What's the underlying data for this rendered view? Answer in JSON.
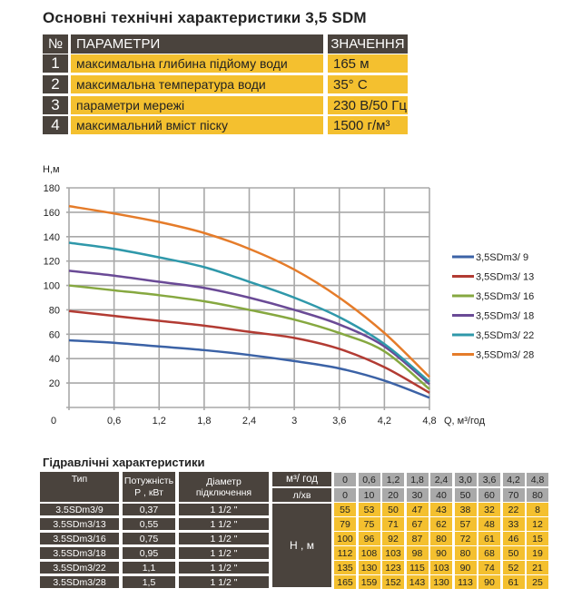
{
  "spec_table": {
    "title": "Основні технічні характеристики 3,5 SDM",
    "headers": {
      "num": "№",
      "param": "ПАРАМЕТРИ",
      "value": "ЗНАЧЕННЯ"
    },
    "rows": [
      {
        "num": "1",
        "param": "максимальна глибина підйому води",
        "value": "165 м"
      },
      {
        "num": "2",
        "param": "максимальна температура води",
        "value": "35° C"
      },
      {
        "num": "3",
        "param": "параметри мережі",
        "value": "230 В/50 Гц"
      },
      {
        "num": "4",
        "param": "максимальний вміст піску",
        "value": "1500 г/м³"
      }
    ]
  },
  "chart_data": {
    "type": "line",
    "ylabel": "H,м",
    "xlabel": "Q, м³/год",
    "x": [
      0,
      0.6,
      1.2,
      1.8,
      2.4,
      3.0,
      3.6,
      4.2,
      4.8
    ],
    "xticks": [
      "0",
      "0,6",
      "1,2",
      "1,8",
      "2,4",
      "3",
      "3,6",
      "4,2",
      "4,8"
    ],
    "yticks": [
      "20",
      "40",
      "60",
      "80",
      "100",
      "120",
      "140",
      "160",
      "180"
    ],
    "xlim": [
      0,
      4.8
    ],
    "ylim": [
      0,
      180
    ],
    "grid": true,
    "legend": "right",
    "series": [
      {
        "name": "3,5SDm3/ 9",
        "color": "#3b62a6",
        "values": [
          55,
          53,
          50,
          47,
          43,
          38,
          32,
          22,
          8
        ]
      },
      {
        "name": "3,5SDm3/ 13",
        "color": "#b23b33",
        "values": [
          79,
          75,
          71,
          67,
          62,
          57,
          48,
          33,
          12
        ]
      },
      {
        "name": "3,5SDm3/ 16",
        "color": "#86a840",
        "values": [
          100,
          96,
          92,
          87,
          80,
          72,
          61,
          46,
          15
        ]
      },
      {
        "name": "3,5SDm3/ 18",
        "color": "#6a4a96",
        "values": [
          112,
          108,
          103,
          98,
          90,
          80,
          68,
          50,
          19
        ]
      },
      {
        "name": "3,5SDm3/ 22",
        "color": "#2f98aa",
        "values": [
          135,
          130,
          123,
          115,
          103,
          90,
          74,
          52,
          21
        ]
      },
      {
        "name": "3,5SDm3/ 28",
        "color": "#e57c2a",
        "values": [
          165,
          159,
          152,
          143,
          130,
          113,
          90,
          61,
          25
        ]
      }
    ]
  },
  "hydraulic_table": {
    "title": "Гідравлічні характеристики",
    "headers": {
      "type": "Тип",
      "power": "Потужність Р , кВт",
      "diameter": "Діаметр підключення",
      "flow_m3": "м³/ год",
      "flow_l": "л/хв",
      "head": "Н , м"
    },
    "flow_m3": [
      "0",
      "0,6",
      "1,2",
      "1,8",
      "2,4",
      "3,0",
      "3,6",
      "4,2",
      "4,8"
    ],
    "flow_l": [
      "0",
      "10",
      "20",
      "30",
      "40",
      "50",
      "60",
      "70",
      "80"
    ],
    "rows": [
      {
        "type": "3.5SDm3/9",
        "power": "0,37",
        "diameter": "1 1/2 \"",
        "head": [
          "55",
          "53",
          "50",
          "47",
          "43",
          "38",
          "32",
          "22",
          "8"
        ]
      },
      {
        "type": "3.5SDm3/13",
        "power": "0,55",
        "diameter": "1 1/2 \"",
        "head": [
          "79",
          "75",
          "71",
          "67",
          "62",
          "57",
          "48",
          "33",
          "12"
        ]
      },
      {
        "type": "3.5SDm3/16",
        "power": "0,75",
        "diameter": "1 1/2 \"",
        "head": [
          "100",
          "96",
          "92",
          "87",
          "80",
          "72",
          "61",
          "46",
          "15"
        ]
      },
      {
        "type": "3.5SDm3/18",
        "power": "0,95",
        "diameter": "1 1/2 \"",
        "head": [
          "112",
          "108",
          "103",
          "98",
          "90",
          "80",
          "68",
          "50",
          "19"
        ]
      },
      {
        "type": "3.5SDm3/22",
        "power": "1,1",
        "diameter": "1 1/2 \"",
        "head": [
          "135",
          "130",
          "123",
          "115",
          "103",
          "90",
          "74",
          "52",
          "21"
        ]
      },
      {
        "type": "3.5SDm3/28",
        "power": "1,5",
        "diameter": "1 1/2 \"",
        "head": [
          "165",
          "159",
          "152",
          "143",
          "130",
          "113",
          "90",
          "61",
          "25"
        ]
      }
    ]
  }
}
